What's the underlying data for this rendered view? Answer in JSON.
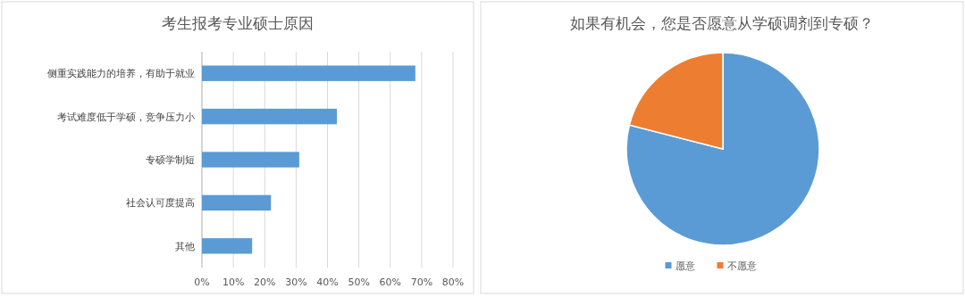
{
  "chart_data": [
    {
      "type": "bar",
      "orientation": "horizontal",
      "title": "考生报考专业硕士原因",
      "categories": [
        "侧重实践能力的培养，有助于就业",
        "考试难度低于学硕，竞争压力小",
        "专硕学制短",
        "社会认可度提高",
        "其他"
      ],
      "values": [
        68,
        43,
        31,
        22,
        16
      ],
      "color": "#5b9bd5",
      "xlim": [
        0,
        80
      ],
      "xticks": [
        {
          "value": 0,
          "label": "0%"
        },
        {
          "value": 10,
          "label": "10%"
        },
        {
          "value": 20,
          "label": "20%"
        },
        {
          "value": 30,
          "label": "30%"
        },
        {
          "value": 40,
          "label": "40%"
        },
        {
          "value": 50,
          "label": "50%"
        },
        {
          "value": 60,
          "label": "60%"
        },
        {
          "value": 70,
          "label": "70%"
        },
        {
          "value": 80,
          "label": "80%"
        }
      ],
      "grid": "x"
    },
    {
      "type": "pie",
      "title": "如果有机会，您是否愿意从学硕调剂到专硕？",
      "categories": [
        "愿意",
        "不愿意"
      ],
      "values": [
        79,
        21
      ],
      "colors": [
        "#5b9bd5",
        "#ed7d31"
      ],
      "legend": "bottom"
    }
  ]
}
